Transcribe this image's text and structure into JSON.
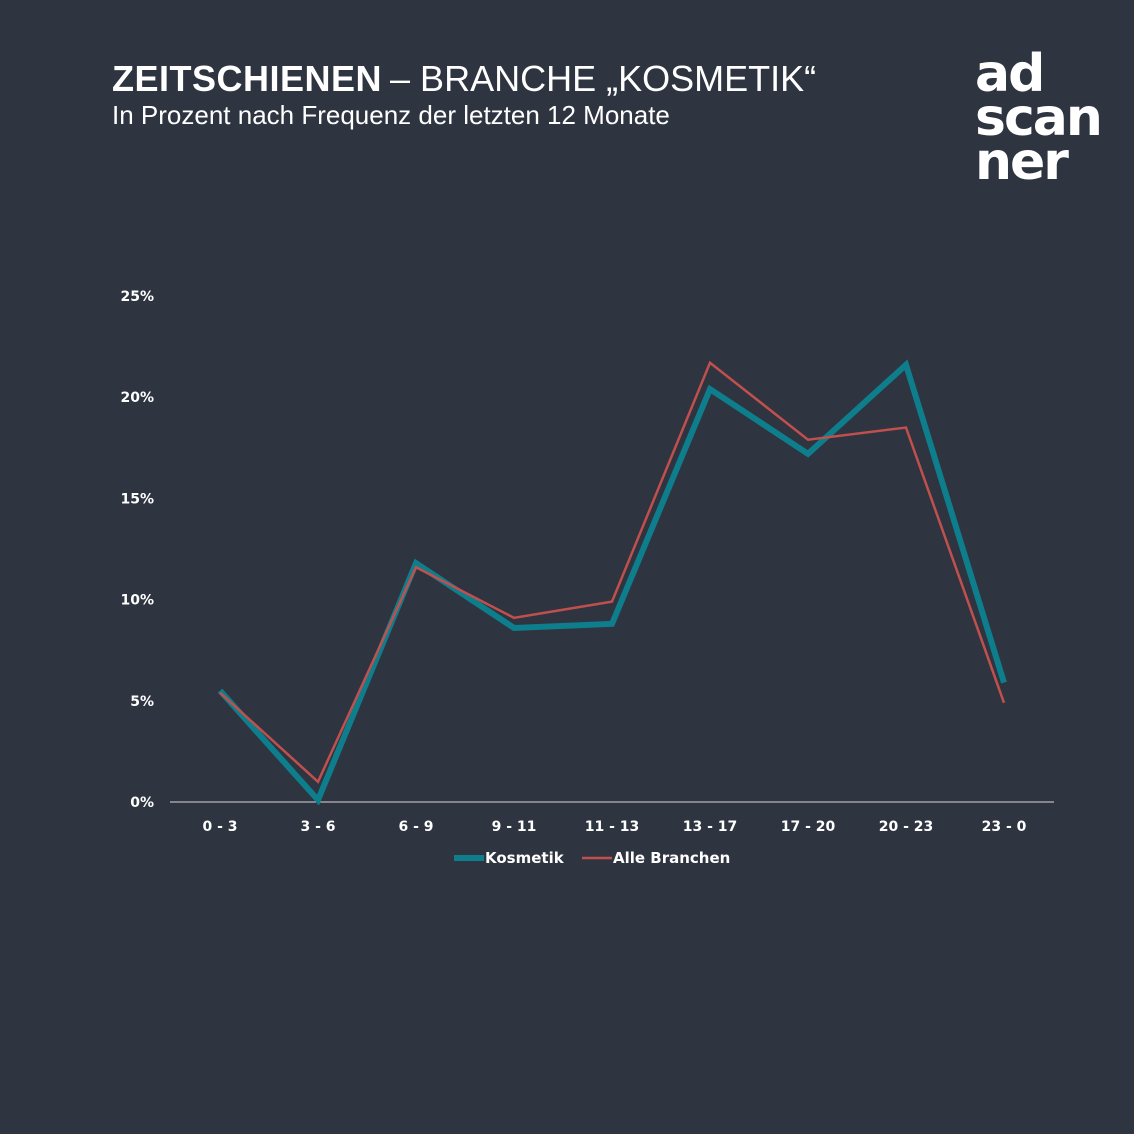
{
  "header": {
    "title_bold": "ZEITSCHIENEN",
    "title_rest": "– BRANCHE „KOSMETIK“",
    "subtitle": "In Prozent nach Frequenz der letzten 12 Monate"
  },
  "logo": {
    "lines": [
      "ad",
      "scan",
      "ner"
    ]
  },
  "colors": {
    "background": "#2e3440",
    "kosmetik": "#0e7d8c",
    "alle_branchen": "#c0504d",
    "axis": "#d9d9d9",
    "text": "#ffffff"
  },
  "chart_data": {
    "type": "line",
    "title": "",
    "xlabel": "",
    "ylabel": "",
    "categories": [
      "0 - 3",
      "3 - 6",
      "6 - 9",
      "9 - 11",
      "11 - 13",
      "13 - 17",
      "17 - 20",
      "20 - 23",
      "23 - 0"
    ],
    "y_ticks": [
      "0%",
      "5%",
      "10%",
      "15%",
      "20%",
      "25%"
    ],
    "ylim": [
      0,
      25
    ],
    "grid": false,
    "legend_position": "bottom",
    "series": [
      {
        "name": "Kosmetik",
        "values": [
          5.5,
          0.1,
          11.8,
          8.6,
          8.8,
          20.4,
          17.2,
          21.6,
          5.9
        ]
      },
      {
        "name": "Alle Branchen",
        "values": [
          5.4,
          1.0,
          11.6,
          9.1,
          9.9,
          21.7,
          17.9,
          18.5,
          4.9
        ]
      }
    ]
  }
}
